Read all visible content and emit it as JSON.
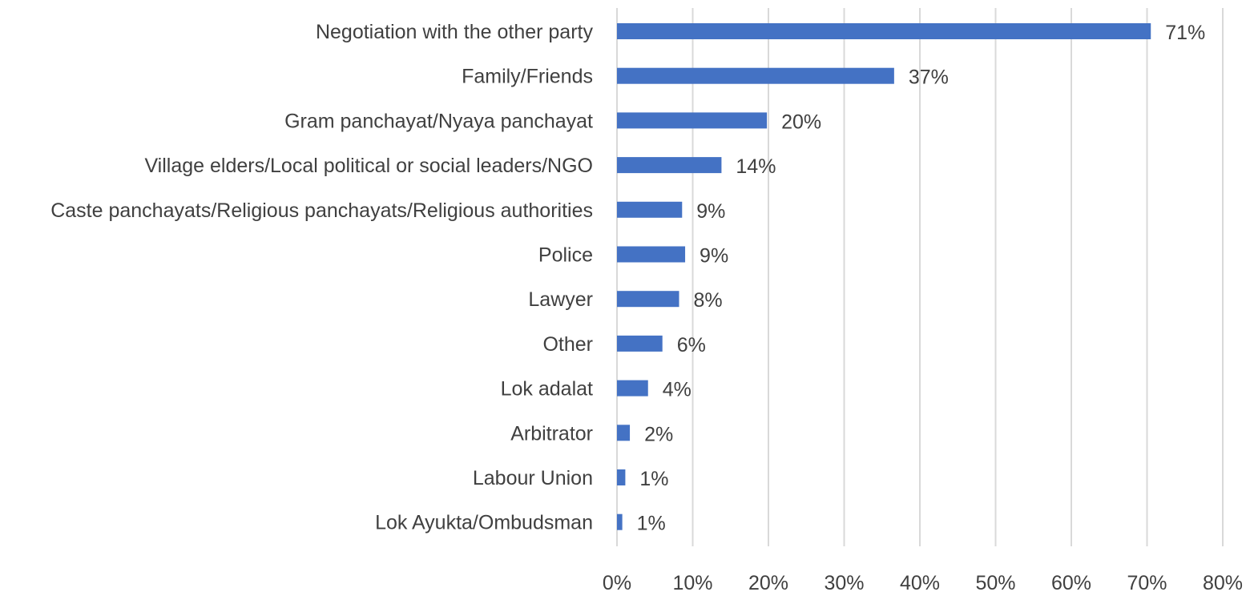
{
  "chart_data": {
    "type": "bar",
    "orientation": "horizontal",
    "title": "",
    "xlabel": "",
    "ylabel": "",
    "categories": [
      "Negotiation with the other party",
      "Family/Friends",
      "Gram panchayat/Nyaya panchayat",
      "Village elders/Local political or social leaders/NGO",
      "Caste panchayats/Religious panchayats/Religious authorities",
      "Police",
      "Lawyer",
      "Other",
      "Lok adalat",
      "Arbitrator",
      "Labour Union",
      "Lok Ayukta/Ombudsman"
    ],
    "values": [
      70.5,
      36.6,
      19.8,
      13.8,
      8.6,
      9.0,
      8.2,
      6.0,
      4.1,
      1.7,
      1.1,
      0.7
    ],
    "data_labels": [
      "71%",
      "37%",
      "20%",
      "14%",
      "9%",
      "9%",
      "8%",
      "6%",
      "4%",
      "2%",
      "1%",
      "1%"
    ],
    "xlim": [
      0,
      80
    ],
    "x_ticks": [
      0,
      10,
      20,
      30,
      40,
      50,
      60,
      70,
      80
    ],
    "x_tick_labels": [
      "0%",
      "10%",
      "20%",
      "30%",
      "40%",
      "50%",
      "60%",
      "70%",
      "80%"
    ],
    "grid": "vertical",
    "legend": "none",
    "bar_color": "#4472C4",
    "grid_color": "#D9D9D9",
    "text_color": "#404040"
  }
}
